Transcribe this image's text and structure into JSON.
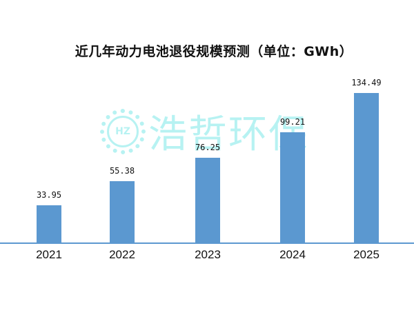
{
  "chart_data": {
    "type": "bar",
    "title": "近几年动力电池退役规模预测（单位：GWh）",
    "categories": [
      "2021",
      "2022",
      "2023",
      "2024",
      "2025"
    ],
    "values": [
      33.95,
      55.38,
      76.25,
      99.21,
      134.49
    ],
    "value_labels": [
      "33.95",
      "55.38",
      "76.25",
      "99.21",
      "134.49"
    ],
    "xlabel": "",
    "ylabel": "",
    "unit": "GWh",
    "grid": false,
    "legend": "none",
    "bar_color": "#5b98d0"
  },
  "watermark": {
    "logo_text": "HZ",
    "text": "浩哲环保",
    "color": "#7ee8e8"
  }
}
